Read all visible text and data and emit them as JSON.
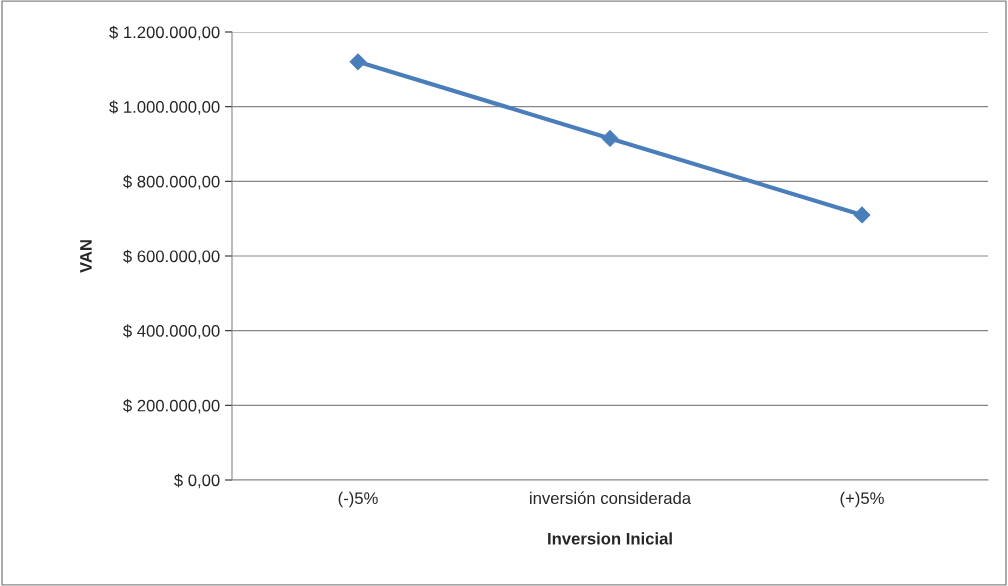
{
  "chart_data": {
    "type": "line",
    "xlabel": "Inversion Inicial",
    "ylabel": "VAN",
    "categories": [
      "(-)5%",
      "inversión considerada",
      "(+)5%"
    ],
    "series": [
      {
        "color": "#4a7ebb",
        "values": [
          1120000,
          915000,
          710000
        ]
      }
    ],
    "ylim": [
      0,
      1200000
    ],
    "yticks": [
      {
        "value": 0,
        "label": "$ 0,00"
      },
      {
        "value": 200000,
        "label": "$ 200.000,00"
      },
      {
        "value": 400000,
        "label": "$ 400.000,00"
      },
      {
        "value": 600000,
        "label": "$ 600.000,00"
      },
      {
        "value": 800000,
        "label": "$ 800.000,00"
      },
      {
        "value": 1000000,
        "label": "$ 1.000.000,00"
      },
      {
        "value": 1200000,
        "label": "$ 1.200.000,00"
      }
    ],
    "grid": "y",
    "legend": false,
    "marker": "diamond",
    "line_style": "solid"
  }
}
